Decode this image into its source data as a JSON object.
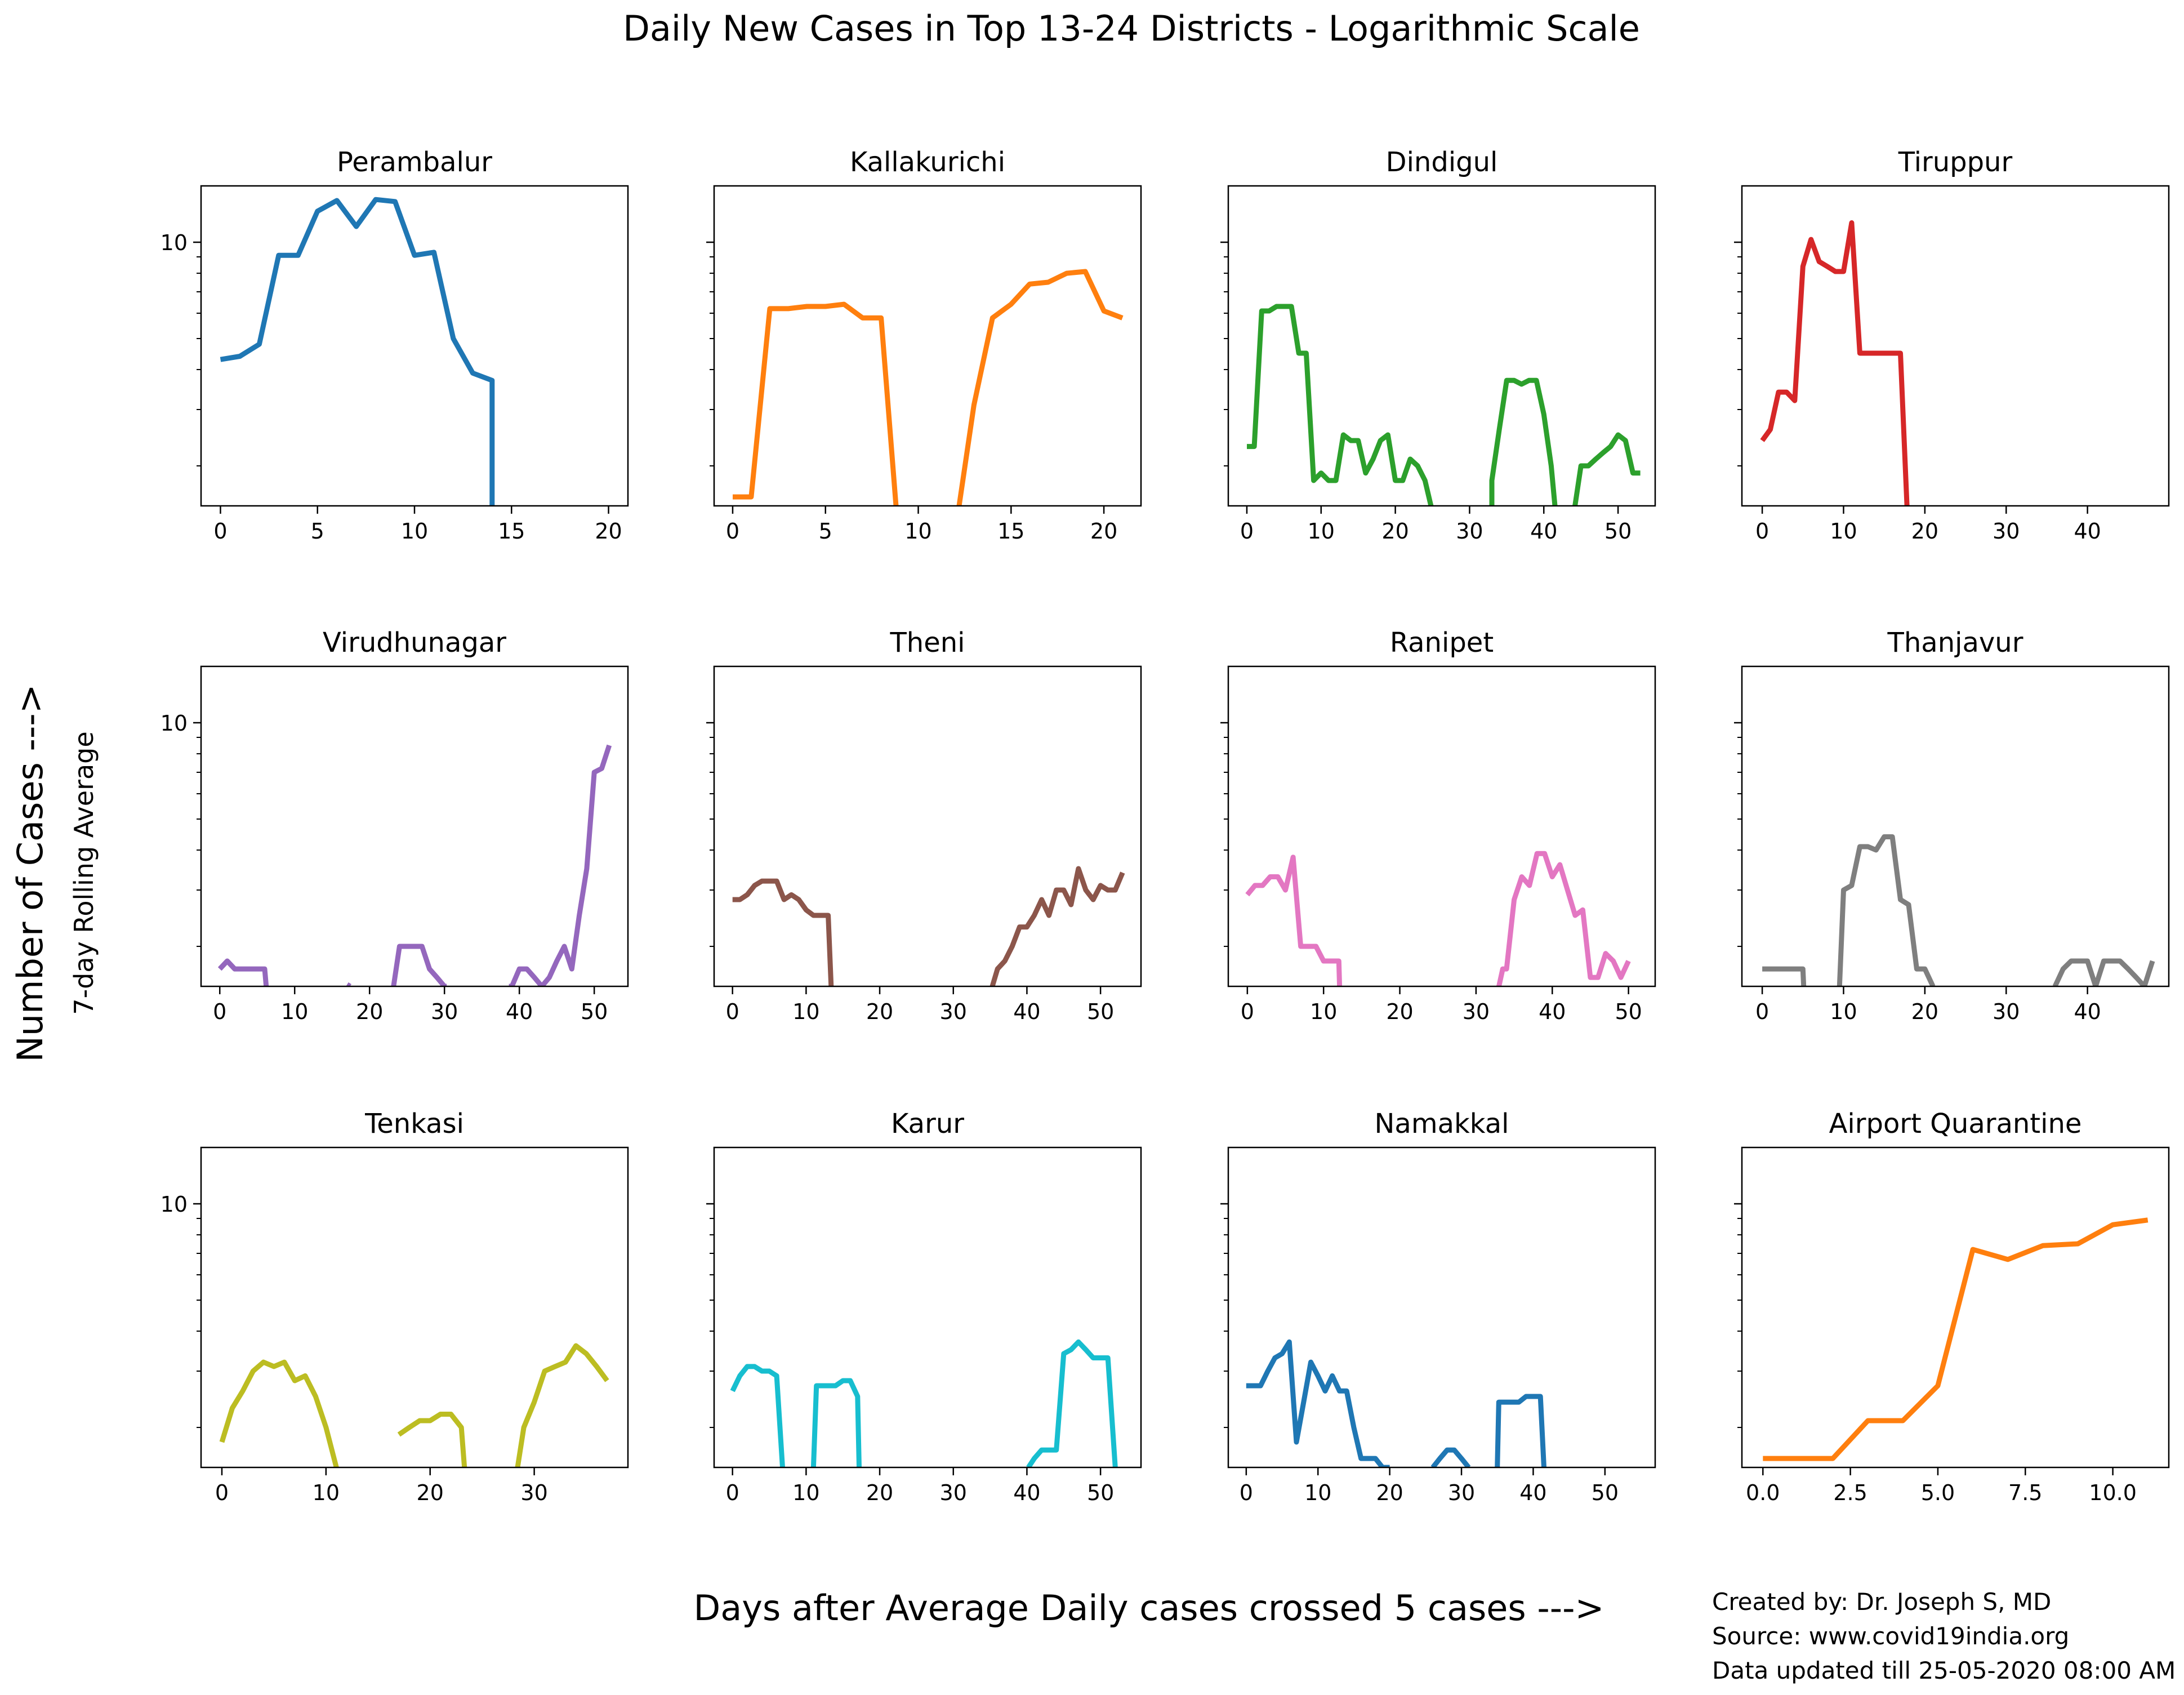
{
  "figure": {
    "title": "Daily New Cases in Top 13-24 Districts - Logarithmic Scale",
    "ylabel_main": "Number of Cases --->",
    "ylabel_sub": "7-day Rolling Average",
    "xlabel": "Days after Average Daily cases crossed 5 cases --->",
    "credits": [
      "Created by: Dr. Joseph S, MD",
      "Source: www.covid19india.org",
      "Data updated till 25-05-2020 08:00 AM"
    ]
  },
  "chart_data": [
    {
      "type": "line",
      "title": "Perambalur",
      "yscale": "log",
      "ylim": [
        1.5,
        15
      ],
      "y_tick_labels": [
        "10"
      ],
      "xlim": [
        -1,
        21
      ],
      "xticks": [
        0,
        5,
        10,
        15,
        20
      ],
      "color": "#1f77b4",
      "x": [
        0,
        1,
        2,
        3,
        4,
        5,
        6,
        7,
        8,
        9,
        10,
        11,
        12,
        13,
        14,
        14
      ],
      "y": [
        4.3,
        4.4,
        4.8,
        9.1,
        9.1,
        12.5,
        13.5,
        11.2,
        13.6,
        13.4,
        9.1,
        9.3,
        5.0,
        3.9,
        3.7,
        1.5
      ]
    },
    {
      "type": "line",
      "title": "Kallakurichi",
      "yscale": "log",
      "ylim": [
        1.5,
        15
      ],
      "y_tick_labels": [],
      "xlim": [
        -1,
        22
      ],
      "xticks": [
        0,
        5,
        10,
        15,
        20
      ],
      "color": "#ff7f0e",
      "segments": [
        {
          "x": [
            0,
            1,
            2,
            3,
            4,
            5,
            6,
            7,
            8,
            8.8
          ],
          "y": [
            1.6,
            1.6,
            6.2,
            6.2,
            6.3,
            6.3,
            6.4,
            5.8,
            5.8,
            1.5
          ]
        },
        {
          "x": [
            12.2,
            13,
            14,
            15,
            16,
            17,
            18,
            19,
            20,
            21
          ],
          "y": [
            1.5,
            3.1,
            5.8,
            6.4,
            7.4,
            7.5,
            8.0,
            8.1,
            6.1,
            5.8
          ]
        }
      ]
    },
    {
      "type": "line",
      "title": "Dindigul",
      "yscale": "log",
      "ylim": [
        1.5,
        15
      ],
      "y_tick_labels": [],
      "xlim": [
        -2.5,
        55
      ],
      "xticks": [
        0,
        10,
        20,
        30,
        40,
        50
      ],
      "color": "#2ca02c",
      "segments": [
        {
          "x": [
            0,
            1,
            2,
            3,
            4,
            5,
            6,
            7,
            8,
            9,
            10,
            11,
            12,
            13,
            14,
            15,
            16,
            17,
            18,
            19,
            20,
            21,
            22,
            23,
            24,
            24.8
          ],
          "y": [
            2.3,
            2.3,
            6.1,
            6.1,
            6.3,
            6.3,
            6.3,
            4.5,
            4.5,
            1.8,
            1.9,
            1.8,
            1.8,
            2.5,
            2.4,
            2.4,
            1.9,
            2.1,
            2.4,
            2.5,
            1.8,
            1.8,
            2.1,
            2.0,
            1.8,
            1.5
          ]
        },
        {
          "x": [
            33,
            33,
            34,
            35,
            36,
            37,
            38,
            39,
            40,
            41,
            41.5
          ],
          "y": [
            1.5,
            1.8,
            2.6,
            3.7,
            3.7,
            3.6,
            3.7,
            3.7,
            2.9,
            2.0,
            1.5
          ]
        },
        {
          "x": [
            44.2,
            45,
            46,
            47,
            48,
            49,
            50,
            51,
            52,
            53
          ],
          "y": [
            1.5,
            2.0,
            2.0,
            2.1,
            2.2,
            2.3,
            2.5,
            2.4,
            1.9,
            1.9
          ]
        }
      ]
    },
    {
      "type": "line",
      "title": "Tiruppur",
      "yscale": "log",
      "ylim": [
        1.5,
        15
      ],
      "y_tick_labels": [],
      "xlim": [
        -2.5,
        50
      ],
      "xticks": [
        0,
        10,
        20,
        30,
        40
      ],
      "color": "#d62728",
      "segments": [
        {
          "x": [
            0,
            1,
            2,
            3,
            4,
            5,
            6,
            7,
            8,
            9,
            10,
            11,
            12,
            13,
            14,
            15,
            16,
            17,
            17.8
          ],
          "y": [
            2.4,
            2.6,
            3.4,
            3.4,
            3.2,
            8.4,
            10.2,
            8.7,
            8.4,
            8.1,
            8.1,
            11.5,
            4.5,
            4.5,
            4.5,
            4.5,
            4.5,
            4.5,
            1.5
          ]
        }
      ]
    },
    {
      "type": "line",
      "title": "Virudhunagar",
      "yscale": "log",
      "ylim": [
        1.5,
        15
      ],
      "y_tick_labels": [
        "10"
      ],
      "xlim": [
        -2.5,
        54.5
      ],
      "xticks": [
        0,
        10,
        20,
        30,
        40,
        50
      ],
      "color": "#9467bd",
      "segments": [
        {
          "x": [
            0,
            1,
            2,
            3,
            4,
            5,
            6,
            6.2
          ],
          "y": [
            1.7,
            1.8,
            1.7,
            1.7,
            1.7,
            1.7,
            1.7,
            1.5
          ]
        },
        {
          "x": [
            17,
            17.4
          ],
          "y": [
            1.52,
            1.5
          ]
        },
        {
          "x": [
            23.2,
            24,
            25,
            26,
            27,
            28,
            29,
            30,
            30.3
          ],
          "y": [
            1.5,
            2.0,
            2.0,
            2.0,
            2.0,
            1.7,
            1.6,
            1.5,
            1.5
          ]
        },
        {
          "x": [
            38.6,
            39,
            40,
            41,
            42,
            43,
            44,
            45,
            46,
            47,
            48,
            49,
            50,
            51,
            52
          ],
          "y": [
            1.5,
            1.5,
            1.7,
            1.7,
            1.6,
            1.5,
            1.6,
            1.8,
            2.0,
            1.7,
            2.5,
            3.5,
            7.0,
            7.2,
            8.5
          ]
        }
      ]
    },
    {
      "type": "line",
      "title": "Theni",
      "yscale": "log",
      "ylim": [
        1.5,
        15
      ],
      "y_tick_labels": [],
      "xlim": [
        -2.5,
        55.5
      ],
      "xticks": [
        0,
        10,
        20,
        30,
        40,
        50
      ],
      "color": "#8c564b",
      "segments": [
        {
          "x": [
            0,
            1,
            2,
            3,
            4,
            5,
            6,
            7,
            8,
            9,
            10,
            11,
            12,
            13,
            13.4
          ],
          "y": [
            2.8,
            2.8,
            2.9,
            3.1,
            3.2,
            3.2,
            3.2,
            2.8,
            2.9,
            2.8,
            2.6,
            2.5,
            2.5,
            2.5,
            1.5
          ]
        },
        {
          "x": [
            35.3,
            36,
            37,
            38,
            39,
            40,
            41,
            42,
            43,
            44,
            45,
            46,
            47,
            48,
            49,
            50,
            51,
            52,
            53
          ],
          "y": [
            1.5,
            1.7,
            1.8,
            2.0,
            2.3,
            2.3,
            2.5,
            2.8,
            2.5,
            3.0,
            3.0,
            2.7,
            3.5,
            3.0,
            2.8,
            3.1,
            3.0,
            3.0,
            3.4
          ]
        }
      ]
    },
    {
      "type": "line",
      "title": "Ranipet",
      "yscale": "log",
      "ylim": [
        1.5,
        15
      ],
      "y_tick_labels": [],
      "xlim": [
        -2.5,
        53.5
      ],
      "xticks": [
        0,
        10,
        20,
        30,
        40,
        50
      ],
      "color": "#e377c2",
      "segments": [
        {
          "x": [
            0,
            1,
            2,
            3,
            4,
            5,
            6,
            7,
            8,
            9,
            10,
            11,
            12,
            12.1
          ],
          "y": [
            2.9,
            3.1,
            3.1,
            3.3,
            3.3,
            3.0,
            3.8,
            2.0,
            2.0,
            2.0,
            1.8,
            1.8,
            1.8,
            1.5
          ]
        },
        {
          "x": [
            33,
            33.5,
            34,
            35,
            36,
            37,
            38,
            39,
            40,
            41,
            42,
            43,
            44,
            45,
            46,
            47,
            48,
            49,
            50
          ],
          "y": [
            1.5,
            1.7,
            1.7,
            2.8,
            3.3,
            3.1,
            3.9,
            3.9,
            3.3,
            3.6,
            3.0,
            2.5,
            2.6,
            1.6,
            1.6,
            1.9,
            1.8,
            1.6,
            1.8
          ]
        }
      ]
    },
    {
      "type": "line",
      "title": "Thanjavur",
      "yscale": "log",
      "ylim": [
        1.5,
        15
      ],
      "y_tick_labels": [],
      "xlim": [
        -2.5,
        50
      ],
      "xticks": [
        0,
        10,
        20,
        30,
        40
      ],
      "color": "#7f7f7f",
      "segments": [
        {
          "x": [
            0,
            1,
            2,
            3,
            4,
            5,
            5.1
          ],
          "y": [
            1.7,
            1.7,
            1.7,
            1.7,
            1.7,
            1.7,
            1.5
          ]
        },
        {
          "x": [
            9.5,
            10,
            11,
            12,
            13,
            14,
            15,
            16,
            17,
            18,
            19,
            20,
            21
          ],
          "y": [
            1.5,
            3.0,
            3.1,
            4.1,
            4.1,
            4.0,
            4.4,
            4.4,
            2.8,
            2.7,
            1.7,
            1.7,
            1.5
          ]
        },
        {
          "x": [
            36,
            37,
            38,
            39,
            40,
            41,
            42,
            43,
            44,
            45,
            46,
            47,
            48
          ],
          "y": [
            1.5,
            1.7,
            1.8,
            1.8,
            1.8,
            1.5,
            1.8,
            1.8,
            1.8,
            1.7,
            1.6,
            1.5,
            1.8
          ]
        }
      ]
    },
    {
      "type": "line",
      "title": "Tenkasi",
      "yscale": "log",
      "ylim": [
        1.5,
        15
      ],
      "y_tick_labels": [
        "10"
      ],
      "xlim": [
        -2,
        39
      ],
      "xticks": [
        0,
        10,
        20,
        30
      ],
      "color": "#bcbd22",
      "segments": [
        {
          "x": [
            0,
            1,
            2,
            3,
            4,
            5,
            6,
            7,
            8,
            9,
            10,
            11
          ],
          "y": [
            1.8,
            2.3,
            2.6,
            3.0,
            3.2,
            3.1,
            3.2,
            2.8,
            2.9,
            2.5,
            2.0,
            1.5
          ]
        },
        {
          "x": [
            17,
            18,
            19,
            20,
            21,
            22,
            23,
            23.3
          ],
          "y": [
            1.9,
            2.0,
            2.1,
            2.1,
            2.2,
            2.2,
            2.0,
            1.5
          ]
        },
        {
          "x": [
            28.4,
            29,
            30,
            31,
            32,
            33,
            34,
            35,
            36,
            37
          ],
          "y": [
            1.5,
            2.0,
            2.4,
            3.0,
            3.1,
            3.2,
            3.6,
            3.4,
            3.1,
            2.8
          ]
        }
      ]
    },
    {
      "type": "line",
      "title": "Karur",
      "yscale": "log",
      "ylim": [
        1.5,
        15
      ],
      "y_tick_labels": [],
      "xlim": [
        -2.5,
        55.5
      ],
      "xticks": [
        0,
        10,
        20,
        30,
        40,
        50
      ],
      "color": "#17becf",
      "segments": [
        {
          "x": [
            0,
            1,
            2,
            3,
            4,
            5,
            6,
            6.8
          ],
          "y": [
            2.6,
            2.9,
            3.1,
            3.1,
            3.0,
            3.0,
            2.9,
            1.5
          ]
        },
        {
          "x": [
            11,
            11.4,
            12,
            13,
            14,
            15,
            16,
            17,
            17.2
          ],
          "y": [
            1.5,
            2.7,
            2.7,
            2.7,
            2.7,
            2.8,
            2.8,
            2.5,
            1.5
          ]
        },
        {
          "x": [
            40.2,
            41,
            42,
            43,
            44,
            45,
            46,
            47,
            48,
            49,
            50,
            51,
            52
          ],
          "y": [
            1.5,
            1.6,
            1.7,
            1.7,
            1.7,
            3.4,
            3.5,
            3.7,
            3.5,
            3.3,
            3.3,
            3.3,
            1.5
          ]
        }
      ]
    },
    {
      "type": "line",
      "title": "Namakkal",
      "yscale": "log",
      "ylim": [
        1.5,
        15
      ],
      "y_tick_labels": [],
      "xlim": [
        -2.5,
        57
      ],
      "xticks": [
        0,
        10,
        20,
        30,
        40,
        50
      ],
      "color": "#1f77b4",
      "segments": [
        {
          "x": [
            0,
            1,
            2,
            3,
            4,
            5,
            6,
            7,
            8,
            9,
            10,
            11,
            12,
            13,
            14,
            15,
            16,
            17,
            18,
            19,
            20
          ],
          "y": [
            2.7,
            2.7,
            2.7,
            3.0,
            3.3,
            3.4,
            3.7,
            1.8,
            2.4,
            3.2,
            2.9,
            2.6,
            2.9,
            2.6,
            2.6,
            2.0,
            1.6,
            1.6,
            1.6,
            1.5,
            1.5
          ]
        },
        {
          "x": [
            26,
            27,
            28,
            29,
            30,
            31
          ],
          "y": [
            1.5,
            1.6,
            1.7,
            1.7,
            1.6,
            1.5
          ]
        },
        {
          "x": [
            35,
            35.2,
            36,
            37,
            38,
            39,
            40,
            41,
            41.5
          ],
          "y": [
            1.5,
            2.4,
            2.4,
            2.4,
            2.4,
            2.5,
            2.5,
            2.5,
            1.5
          ]
        }
      ]
    },
    {
      "type": "line",
      "title": "Airport Quarantine",
      "yscale": "log",
      "ylim": [
        1.5,
        15
      ],
      "y_tick_labels": [],
      "xlim": [
        -0.6,
        11.6
      ],
      "xticks": [
        0.0,
        2.5,
        5.0,
        7.5,
        10.0
      ],
      "x_tick_labels": [
        "0.0",
        "2.5",
        "5.0",
        "7.5",
        "10.0"
      ],
      "color": "#ff7f0e",
      "x": [
        0,
        1,
        2,
        3,
        4,
        5,
        6,
        7,
        8,
        9,
        10,
        11
      ],
      "y": [
        1.6,
        1.6,
        1.6,
        2.1,
        2.1,
        2.7,
        7.2,
        6.7,
        7.4,
        7.5,
        8.6,
        8.9
      ]
    }
  ]
}
